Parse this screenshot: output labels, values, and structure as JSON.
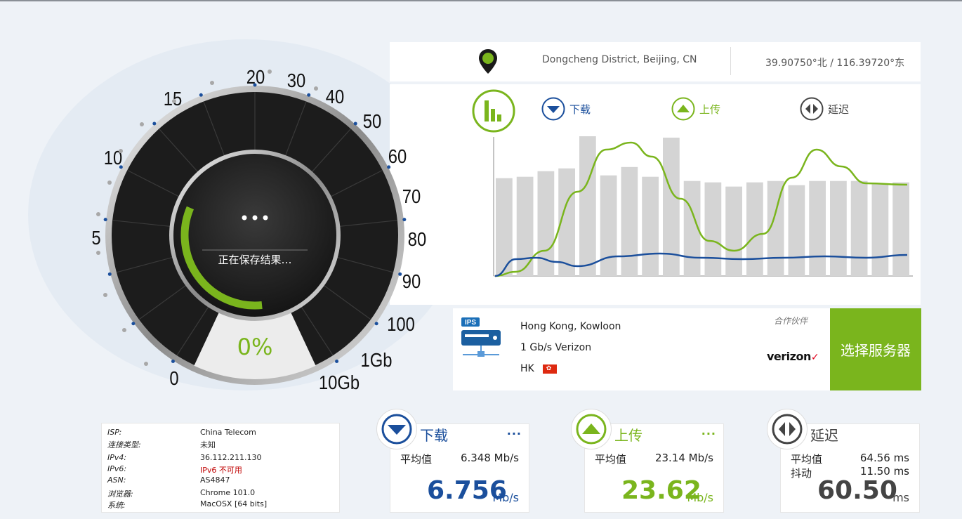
{
  "location": {
    "place": "Dongcheng District, Beijing, CN",
    "coords": "39.90750°北 / 116.39720°东"
  },
  "legend": {
    "download": "下载",
    "upload": "上传",
    "latency": "延迟"
  },
  "gauge": {
    "status": "正在保存结果…",
    "progress_text": "0%",
    "progress_fraction": 0.33,
    "ticks": [
      "0",
      "5",
      "10",
      "15",
      "20",
      "30",
      "40",
      "50",
      "60",
      "70",
      "80",
      "90",
      "100",
      "1Gb",
      "10Gb"
    ]
  },
  "chart_data": {
    "type": "bar",
    "bars": [
      70,
      71,
      75,
      77,
      100,
      72,
      78,
      71,
      99,
      68,
      67,
      64,
      67,
      68,
      65,
      68,
      68,
      68,
      66,
      67
    ],
    "series": [
      {
        "key": "upload",
        "color": "#7ab51d"
      },
      {
        "key": "download",
        "color": "#1b4f9c"
      }
    ]
  },
  "server": {
    "icon_label": "IPS",
    "city": "Hong Kong, Kowloon",
    "provider": "1 Gb/s Verizon",
    "country": "HK",
    "partner_label": "合作伙伴",
    "partner_logo": "verizon",
    "select_label": "选择服务器"
  },
  "info": [
    {
      "k": "ISP:",
      "v": "China Telecom"
    },
    {
      "k": "连接类型:",
      "v": "未知"
    },
    {
      "k": "IPv4:",
      "v": "36.112.211.130"
    },
    {
      "k": "IPv6:",
      "v": "IPv6 不可用"
    },
    {
      "k": "ASN:",
      "v": "AS4847"
    },
    {
      "k": "浏览器:",
      "v": "Chrome 101.0"
    },
    {
      "k": "系统:",
      "v": "MacOSX [64 bits]"
    }
  ],
  "cards": {
    "download": {
      "title": "下载",
      "dots": "...",
      "avg_label": "平均值",
      "avg_value": "6.348 Mb/s",
      "big": "6.756",
      "unit": "Mb/s"
    },
    "upload": {
      "title": "上传",
      "dots": "...",
      "avg_label": "平均值",
      "avg_value": "23.14 Mb/s",
      "big": "23.62",
      "unit": "Mb/s"
    },
    "latency": {
      "title": "延迟",
      "avg_label": "平均值",
      "avg_value": "64.56 ms",
      "jitter_label": "抖动",
      "jitter_value": "11.50 ms",
      "big": "60.50",
      "unit": "ms"
    }
  },
  "colors": {
    "green": "#7ab51d",
    "blue": "#1b4f9c",
    "gauge_face": "#1c1c1c"
  }
}
